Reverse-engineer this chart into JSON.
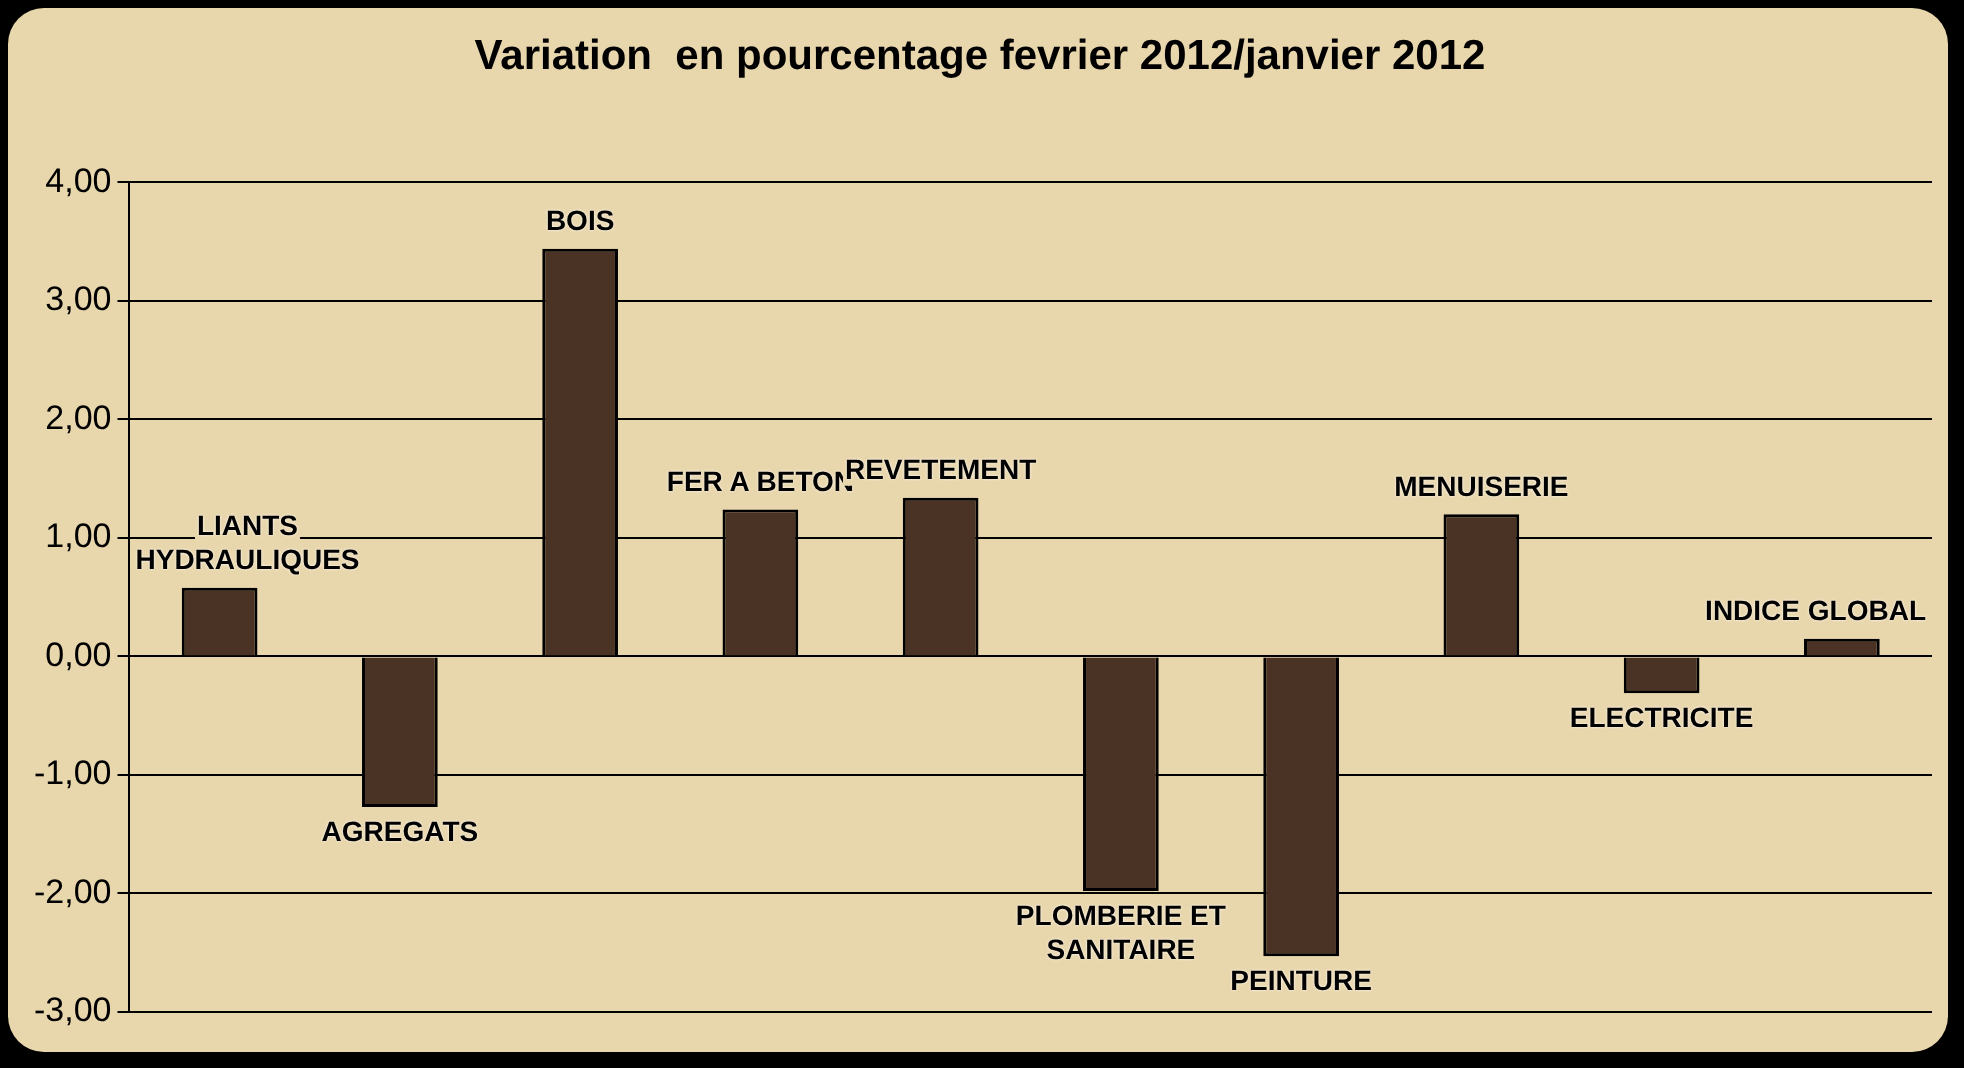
{
  "chart_data": {
    "type": "bar",
    "title": "Variation  en pourcentage fevrier 2012/janvier 2012",
    "categories": [
      "LIANTS HYDRAULIQUES",
      "AGREGATS",
      "BOIS",
      "FER A BETON",
      "REVETEMENT",
      "PLOMBERIE ET SANITAIRE",
      "PEINTURE",
      "MENUISERIE",
      "ELECTRICITE",
      "INDICE GLOBAL"
    ],
    "values": [
      0.58,
      -1.27,
      3.44,
      1.24,
      1.34,
      -1.98,
      -2.53,
      1.2,
      -0.31,
      0.15
    ],
    "color": "#4a3324",
    "ylim": [
      -3,
      4
    ],
    "yticks": [
      {
        "value": -3,
        "label": "-3,00"
      },
      {
        "value": -2,
        "label": "-2,00"
      },
      {
        "value": -1,
        "label": "-1,00"
      },
      {
        "value": 0,
        "label": "0,00"
      },
      {
        "value": 1,
        "label": "1,00"
      },
      {
        "value": 2,
        "label": "2,00"
      },
      {
        "value": 3,
        "label": "3,00"
      },
      {
        "value": 4,
        "label": "4,00"
      }
    ],
    "grid": "y",
    "legend": false,
    "tick_labels": "y"
  }
}
